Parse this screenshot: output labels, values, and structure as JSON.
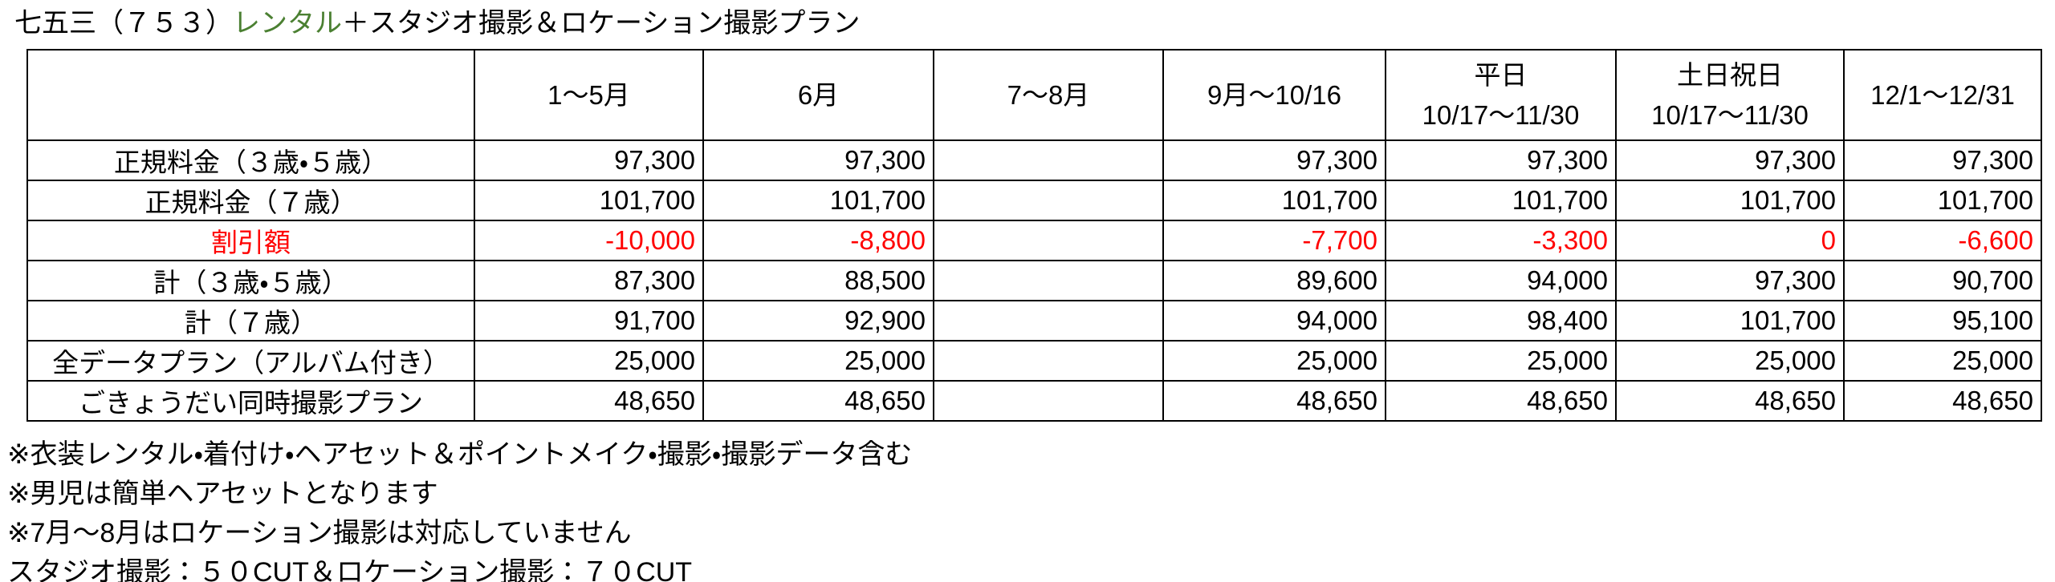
{
  "page_title": {
    "prefix": "七五三（７５３）",
    "highlight": "レンタル",
    "suffix": "＋スタジオ撮影＆ロケーション撮影プラン"
  },
  "colors": {
    "highlight_green": "#4b8032",
    "discount_red": "#ff0000",
    "text": "#000000",
    "border": "#000000",
    "background": "#ffffff"
  },
  "table": {
    "corner_label": "",
    "column_headers": [
      "1～5月",
      "6月",
      "7～8月",
      "9月～10/16",
      "平日\n10/17～11/30",
      "土日祝日\n10/17～11/30",
      "12/1～12/31"
    ],
    "rows": [
      {
        "label": "正規料金（３歳・５歳）",
        "type": "normal",
        "values": [
          "97,300",
          "97,300",
          "",
          "97,300",
          "97,300",
          "97,300",
          "97,300"
        ]
      },
      {
        "label": "正規料金（７歳）",
        "type": "normal",
        "values": [
          "101,700",
          "101,700",
          "",
          "101,700",
          "101,700",
          "101,700",
          "101,700"
        ]
      },
      {
        "label": "割引額",
        "type": "discount",
        "values": [
          "-10,000",
          "-8,800",
          "",
          "-7,700",
          "-3,300",
          "0",
          "-6,600"
        ]
      },
      {
        "label": "計（３歳・５歳）",
        "type": "normal",
        "values": [
          "87,300",
          "88,500",
          "",
          "89,600",
          "94,000",
          "97,300",
          "90,700"
        ]
      },
      {
        "label": "計（７歳）",
        "type": "normal",
        "values": [
          "91,700",
          "92,900",
          "",
          "94,000",
          "98,400",
          "101,700",
          "95,100"
        ]
      },
      {
        "label": "全データプラン（アルバム付き）",
        "type": "normal",
        "values": [
          "25,000",
          "25,000",
          "",
          "25,000",
          "25,000",
          "25,000",
          "25,000"
        ]
      },
      {
        "label": "ごきょうだい同時撮影プラン",
        "type": "normal",
        "values": [
          "48,650",
          "48,650",
          "",
          "48,650",
          "48,650",
          "48,650",
          "48,650"
        ]
      }
    ]
  },
  "footnotes": [
    "※衣装レンタル・着付け・ヘアセット＆ポイントメイク・撮影・撮影データ含む",
    "※男児は簡単ヘアセットとなります",
    "※7月～8月はロケーション撮影は対応していません",
    "スタジオ撮影：５０CUT＆ロケーション撮影：７０CUT"
  ]
}
